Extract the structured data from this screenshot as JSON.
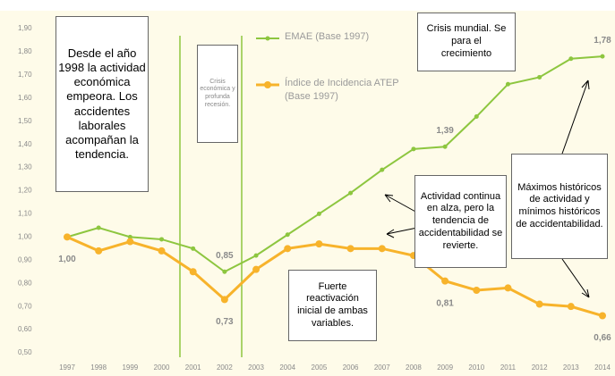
{
  "chart_data": {
    "type": "line",
    "categories": [
      "1997",
      "1998",
      "1999",
      "2000",
      "2001",
      "2002",
      "2003",
      "2004",
      "2005",
      "2006",
      "2007",
      "2008",
      "2009",
      "2010",
      "2011",
      "2012",
      "2013",
      "2014"
    ],
    "series": [
      {
        "name": "EMAE (Base 1997)",
        "color": "#8dc63f",
        "values": [
          1.0,
          1.04,
          1.0,
          0.99,
          0.95,
          0.85,
          0.92,
          1.01,
          1.1,
          1.19,
          1.29,
          1.38,
          1.39,
          1.52,
          1.66,
          1.69,
          1.77,
          1.78
        ],
        "value_labels": [
          null,
          null,
          null,
          null,
          null,
          "0,85",
          null,
          null,
          null,
          null,
          null,
          null,
          "1,39",
          null,
          null,
          null,
          null,
          "1,78"
        ]
      },
      {
        "name": "Índice de Incidencia ATEP (Base 1997)",
        "color": "#f7b32b",
        "values": [
          1.0,
          0.94,
          0.98,
          0.94,
          0.85,
          0.73,
          0.86,
          0.95,
          0.97,
          0.95,
          0.95,
          0.92,
          0.81,
          0.77,
          0.78,
          0.71,
          0.7,
          0.66
        ],
        "value_labels": [
          "1,00",
          null,
          null,
          null,
          null,
          "0,73",
          null,
          null,
          null,
          null,
          null,
          null,
          "0,81",
          null,
          null,
          null,
          null,
          "0,66"
        ]
      }
    ],
    "ylim": [
      0.5,
      1.9
    ],
    "yticks": [
      {
        "value": 0.5,
        "label": "0,50"
      },
      {
        "value": 0.6,
        "label": "0,60"
      },
      {
        "value": 0.7,
        "label": "0,70"
      },
      {
        "value": 0.8,
        "label": "0,80"
      },
      {
        "value": 0.9,
        "label": "0,90"
      },
      {
        "value": 1.0,
        "label": "1,00"
      },
      {
        "value": 1.1,
        "label": "1,10"
      },
      {
        "value": 1.2,
        "label": "1,20"
      },
      {
        "value": 1.3,
        "label": "1,30"
      },
      {
        "value": 1.4,
        "label": "1,40"
      },
      {
        "value": 1.5,
        "label": "1,50"
      },
      {
        "value": 1.6,
        "label": "1,60"
      },
      {
        "value": 1.7,
        "label": "1,70"
      },
      {
        "value": 1.8,
        "label": "1,80"
      },
      {
        "value": 1.9,
        "label": "1,90"
      }
    ],
    "grid": false,
    "annotations": [
      "Desde el año 1998 la actividad económica empeora. Los accidentes laborales acompañan la tendencia.",
      "Crisis económica y profunda recesión.",
      "Crisis mundial. Se para el crecimiento",
      "Actividad continua en alza, pero la tendencia de accidentabilidad se revierte.",
      "Máximos históricos de actividad y mínimos históricos de accidentabilidad.",
      "Fuerte reactivación inicial de ambas variables."
    ]
  }
}
